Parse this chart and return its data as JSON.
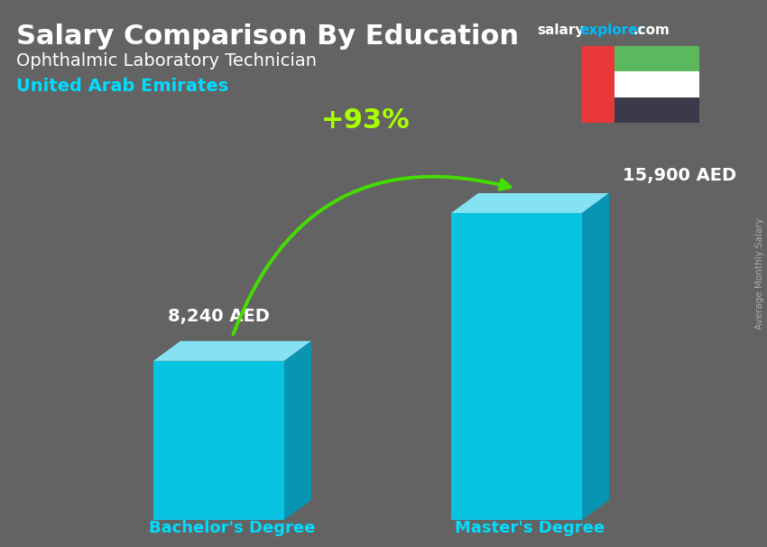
{
  "title_main": "Salary Comparison By Education",
  "title_sub": "Ophthalmic Laboratory Technician",
  "title_country": "United Arab Emirates",
  "bar_labels": [
    "Bachelor's Degree",
    "Master's Degree"
  ],
  "bar_values": [
    8240,
    15900
  ],
  "bar_value_labels": [
    "8,240 AED",
    "15,900 AED"
  ],
  "percent_change": "+93%",
  "ylabel_rotated": "Average Monthly Salary",
  "bar_color_front": "#00CCEE",
  "bar_color_top": "#88EEFF",
  "bar_color_side": "#0099BB",
  "bar_color_side_dark": "#007799",
  "background_color": "#636363",
  "title_color": "#FFFFFF",
  "subtitle_color": "#FFFFFF",
  "country_color": "#00DDFF",
  "value_color": "#FFFFFF",
  "percent_color": "#AAFF00",
  "arrow_color": "#44DD00",
  "x_label_color": "#00DDFF",
  "ylabel_color": "#AAAAAA",
  "site_salary_color": "#FFFFFF",
  "site_explorer_color": "#00BBFF",
  "site_com_color": "#FFFFFF",
  "flag_red": "#E8383A",
  "flag_green": "#5CB85C",
  "flag_white": "#FFFFFF",
  "flag_black": "#3A3A4A"
}
